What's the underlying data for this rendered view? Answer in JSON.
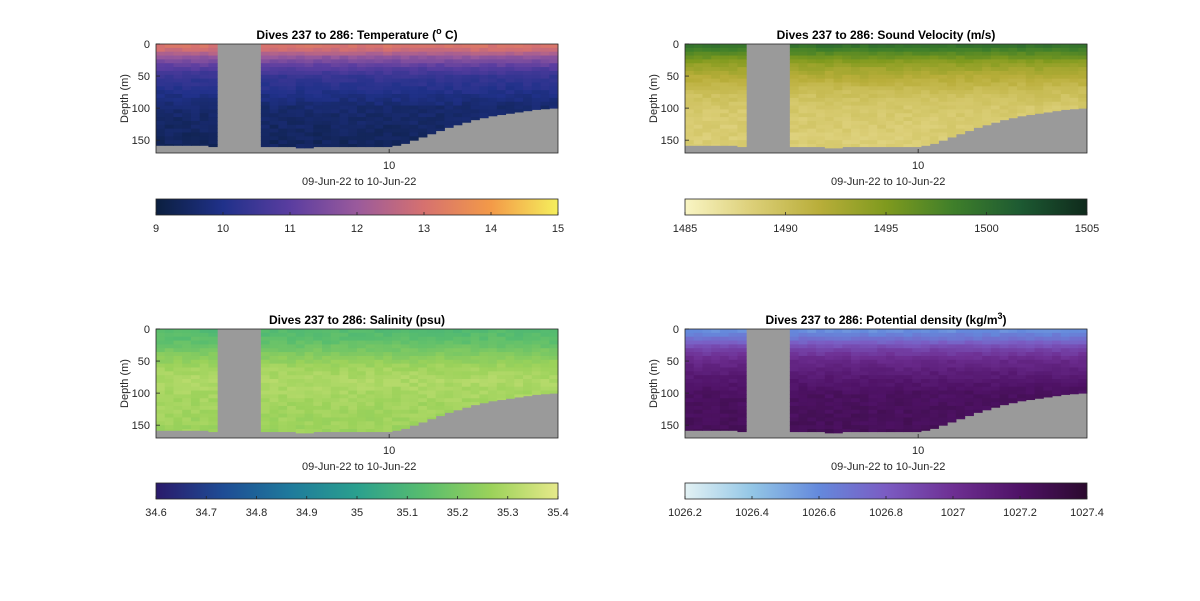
{
  "chart_data": [
    {
      "type": "heatmap",
      "title_prefix": "Dives 237 to 286: Temperature (",
      "title_unit": "o",
      "title_suffix": " C)",
      "title_sup_style": "superscript-o",
      "ylabel": "Depth (m)",
      "xlabel": "09-Jun-22 to 10-Jun-22",
      "xticks": [
        "10"
      ],
      "yticks": [
        0,
        50,
        100,
        150
      ],
      "ylim": [
        0,
        170
      ],
      "colorbar": {
        "min": 9,
        "max": 15,
        "ticks": [
          "9",
          "10",
          "11",
          "12",
          "13",
          "14",
          "15"
        ],
        "colormap": [
          "#0b1f3f",
          "#20318a",
          "#5a3da0",
          "#9a5a9c",
          "#d6716f",
          "#f39a48",
          "#f5ef5c"
        ]
      },
      "profile": [
        {
          "depth": 0,
          "value": 13.2
        },
        {
          "depth": 10,
          "value": 12.8
        },
        {
          "depth": 20,
          "value": 11.9
        },
        {
          "depth": 35,
          "value": 11.0
        },
        {
          "depth": 50,
          "value": 10.4
        },
        {
          "depth": 75,
          "value": 10.0
        },
        {
          "depth": 100,
          "value": 9.6
        },
        {
          "depth": 150,
          "value": 9.4
        }
      ]
    },
    {
      "type": "heatmap",
      "title_prefix": "Dives 237 to 286: Sound Velocity (m/s)",
      "title_unit": "",
      "title_suffix": "",
      "ylabel": "Depth (m)",
      "xlabel": "09-Jun-22 to 10-Jun-22",
      "xticks": [
        "10"
      ],
      "yticks": [
        0,
        50,
        100,
        150
      ],
      "ylim": [
        0,
        170
      ],
      "colorbar": {
        "min": 1485,
        "max": 1505,
        "ticks": [
          "1485",
          "1490",
          "1495",
          "1500",
          "1505"
        ],
        "colormap": [
          "#f9f5c4",
          "#dccf78",
          "#b9ae3a",
          "#7f9a1e",
          "#3f7f2a",
          "#1d5a32",
          "#0f2a1c"
        ]
      },
      "profile": [
        {
          "depth": 0,
          "value": 1500
        },
        {
          "depth": 15,
          "value": 1497
        },
        {
          "depth": 30,
          "value": 1494
        },
        {
          "depth": 50,
          "value": 1492
        },
        {
          "depth": 75,
          "value": 1490
        },
        {
          "depth": 100,
          "value": 1489
        },
        {
          "depth": 150,
          "value": 1488.5
        }
      ]
    },
    {
      "type": "heatmap",
      "title_prefix": "Dives 237 to 286: Salinity (psu)",
      "title_unit": "",
      "title_suffix": "",
      "ylabel": "Depth (m)",
      "xlabel": "09-Jun-22 to 10-Jun-22",
      "xticks": [
        "10"
      ],
      "yticks": [
        0,
        50,
        100,
        150
      ],
      "ylim": [
        0,
        170
      ],
      "colorbar": {
        "min": 34.6,
        "max": 35.4,
        "ticks": [
          "34.6",
          "34.7",
          "34.8",
          "34.9",
          "35",
          "35.1",
          "35.2",
          "35.3",
          "35.4"
        ],
        "colormap": [
          "#2a1a6b",
          "#1e4c95",
          "#1f7a9c",
          "#2aa08e",
          "#58bd6e",
          "#9bd25a",
          "#e6e98a"
        ]
      },
      "profile": [
        {
          "depth": 0,
          "value": 35.12
        },
        {
          "depth": 20,
          "value": 35.15
        },
        {
          "depth": 40,
          "value": 35.22
        },
        {
          "depth": 60,
          "value": 35.28
        },
        {
          "depth": 80,
          "value": 35.3
        },
        {
          "depth": 120,
          "value": 35.28
        },
        {
          "depth": 160,
          "value": 35.27
        }
      ]
    },
    {
      "type": "heatmap",
      "title_prefix": "Dives 237 to 286: Potential density (kg/m",
      "title_unit": "3",
      "title_suffix": ")",
      "ylabel": "Depth (m)",
      "xlabel": "09-Jun-22 to 10-Jun-22",
      "xticks": [
        "10"
      ],
      "yticks": [
        0,
        50,
        100,
        150
      ],
      "ylim": [
        0,
        170
      ],
      "colorbar": {
        "min": 1026.2,
        "max": 1027.4,
        "ticks": [
          "1026.2",
          "1026.4",
          "1026.6",
          "1026.8",
          "1027",
          "1027.2",
          "1027.4"
        ],
        "colormap": [
          "#e3f2f4",
          "#93c6e6",
          "#6489dc",
          "#7b5cc3",
          "#6e2f93",
          "#4f1266",
          "#2b0a2e"
        ]
      },
      "profile": [
        {
          "depth": 0,
          "value": 1026.55
        },
        {
          "depth": 15,
          "value": 1026.7
        },
        {
          "depth": 30,
          "value": 1026.9
        },
        {
          "depth": 50,
          "value": 1027.05
        },
        {
          "depth": 75,
          "value": 1027.15
        },
        {
          "depth": 100,
          "value": 1027.22
        },
        {
          "depth": 160,
          "value": 1027.25
        }
      ]
    }
  ],
  "seabed_depth_by_dive": [
    158,
    158,
    158,
    158,
    158,
    158,
    160,
    160,
    160,
    160,
    160,
    160,
    160,
    160,
    160,
    160,
    162,
    162,
    160,
    160,
    160,
    160,
    160,
    160,
    160,
    160,
    160,
    158,
    155,
    150,
    145,
    140,
    135,
    130,
    126,
    122,
    118,
    115,
    112,
    110,
    108,
    106,
    104,
    102,
    101,
    100
  ],
  "missing_dives": [
    7,
    8,
    9,
    10,
    11
  ],
  "nodata_color": "#9a9a9a"
}
